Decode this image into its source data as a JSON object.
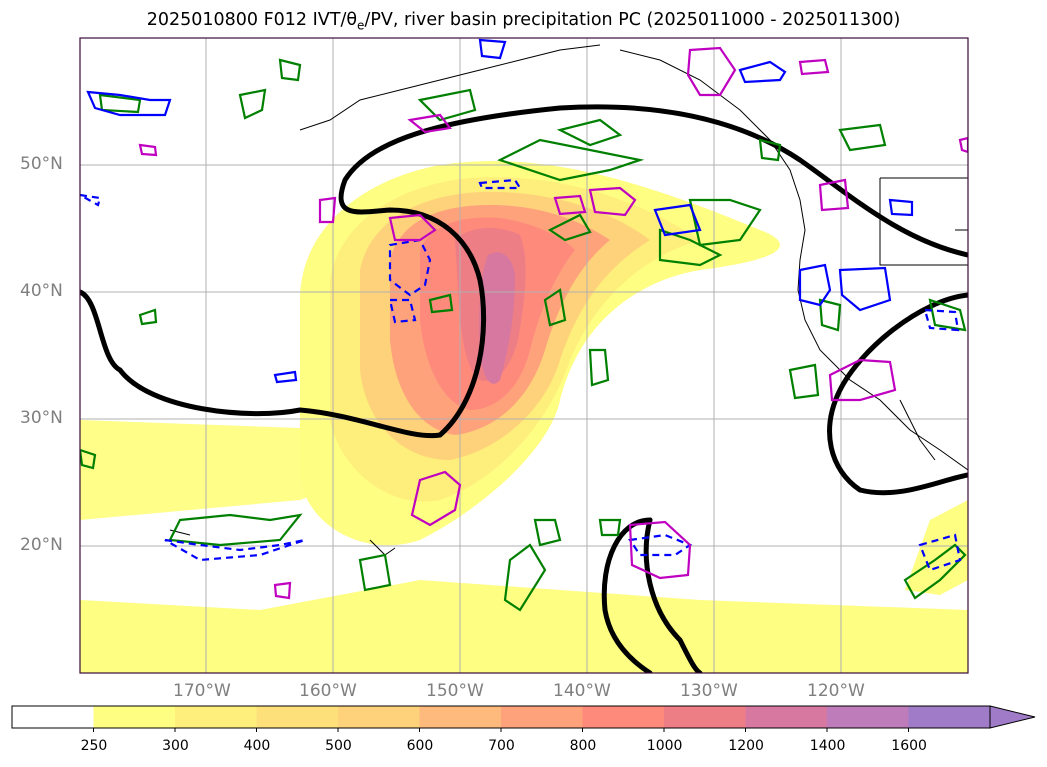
{
  "title": {
    "prefix": "2025010800 F012 IVT/θ",
    "sub": "e",
    "suffix": "/PV, river basin precipitation PC (2025011000 - 2025011300)"
  },
  "axes": {
    "lat_labels": [
      "50°N",
      "40°N",
      "30°N",
      "20°N"
    ],
    "lon_labels": [
      "170°W",
      "160°W",
      "150°W",
      "140°W",
      "130°W",
      "120°W"
    ]
  },
  "colorbar": {
    "levels": [
      "250",
      "300",
      "400",
      "500",
      "600",
      "700",
      "800",
      "1000",
      "1200",
      "1400",
      "1600"
    ],
    "colors": [
      "#ffffff",
      "#fefe82",
      "#feee7c",
      "#fee07a",
      "#fed27a",
      "#feba7c",
      "#fea27c",
      "#fe8a7c",
      "#ee7e86",
      "#d678a0",
      "#be7cba",
      "#a07cc8"
    ],
    "extend": "max"
  },
  "colors": {
    "ridge_contour": "#000000",
    "theta_e_contour": "#008000",
    "pv_positive": "#0000ff",
    "pv_negative_dashed": "#0000ff",
    "precip_contour": "#c000c0",
    "grid": "#b0b0b0",
    "frame": "#3a0b3a"
  }
}
